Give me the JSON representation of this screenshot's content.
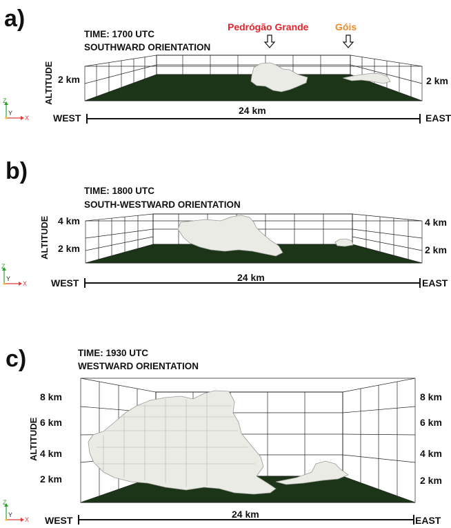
{
  "panels": [
    {
      "letter": "a)",
      "time": "TIME: 1700 UTC",
      "orientation": "SOUTHWARD ORIENTATION",
      "altitude_label": "ALTITUDE",
      "ticks_left": [
        "2 km"
      ],
      "ticks_right": [
        "2 km"
      ],
      "west": "WEST",
      "east": "EAST",
      "distance": "24 km",
      "markers": [
        "Pedrógão Grande",
        "Góis"
      ]
    },
    {
      "letter": "b)",
      "time": "TIME: 1800 UTC",
      "orientation": "SOUTH-WESTWARD ORIENTATION",
      "altitude_label": "ALTITUDE",
      "ticks_left": [
        "4 km",
        "2 km"
      ],
      "ticks_right": [
        "4 km",
        "2 km"
      ],
      "west": "WEST",
      "east": "EAST",
      "distance": "24 km"
    },
    {
      "letter": "c)",
      "time": "TIME: 1930 UTC",
      "orientation": "WESTWARD ORIENTATION",
      "altitude_label": "ALTITUDE",
      "ticks_left": [
        "8 km",
        "6 km",
        "4 km",
        "2 km"
      ],
      "ticks_right": [
        "8 km",
        "6 km",
        "4 km",
        "2 km"
      ],
      "west": "WEST",
      "east": "EAST",
      "distance": "24 km"
    }
  ],
  "axes_indicator": {
    "z": "Z",
    "y": "Y",
    "x": "X"
  },
  "colors": {
    "ground": "#1c3519",
    "cloud": "#ebebe6",
    "grid": "#222222",
    "marker_red": "#e0242b",
    "marker_orange": "#f08a2a"
  }
}
